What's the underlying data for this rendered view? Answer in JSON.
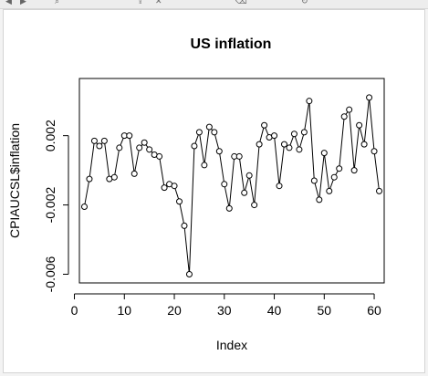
{
  "toolbar": {
    "icons": [
      "arrow-left-icon",
      "arrow-right-icon",
      "zoom-icon",
      "export-icon",
      "clear-icon",
      "broom-icon",
      "refresh-icon"
    ]
  },
  "chart_data": {
    "type": "line",
    "title": "US inflation",
    "xlabel": "Index",
    "ylabel": "CPIAUCSL$inflation",
    "xlim": [
      1,
      62
    ],
    "ylim": [
      -0.0065,
      0.0053
    ],
    "xticks": [
      0,
      10,
      20,
      30,
      40,
      50,
      60
    ],
    "yticks": [
      -0.006,
      -0.002,
      0.002
    ],
    "ytick_labels": [
      "-0.006",
      "-0.002",
      "0.002"
    ],
    "grid": false,
    "point_style": "open-circle",
    "series": [
      {
        "x": [
          2,
          3,
          4,
          5,
          6,
          7,
          8,
          9,
          10,
          11,
          12,
          13,
          14,
          15,
          16,
          17,
          18,
          19,
          20,
          21,
          22,
          23,
          24,
          25,
          26,
          27,
          28,
          29,
          30,
          31,
          32,
          33,
          34,
          35,
          36,
          37,
          38,
          39,
          40,
          41,
          42,
          43,
          44,
          45,
          46,
          47,
          48,
          49,
          50,
          51,
          52,
          53,
          54,
          55,
          56,
          57,
          58,
          59,
          60,
          61
        ],
        "values": [
          -0.0021,
          -0.0005,
          0.0017,
          0.0014,
          0.0017,
          -0.0005,
          -0.0004,
          0.0013,
          0.002,
          0.002,
          -0.0002,
          0.0013,
          0.0016,
          0.0012,
          0.0009,
          0.0008,
          -0.001,
          -0.0008,
          -0.0009,
          -0.0018,
          -0.0032,
          -0.006,
          0.0014,
          0.0022,
          0.0003,
          0.0025,
          0.0022,
          0.0011,
          -0.0008,
          -0.0022,
          0.0008,
          0.0008,
          -0.0013,
          -0.0003,
          -0.002,
          0.0015,
          0.0026,
          0.0019,
          0.002,
          -0.0009,
          0.0015,
          0.0013,
          0.0021,
          0.0012,
          0.0022,
          0.004,
          -0.0006,
          -0.0017,
          0.001,
          -0.0012,
          -0.0004,
          0.0001,
          0.0031,
          0.0035,
          0.0,
          0.0026,
          0.0015,
          0.0042,
          0.0011,
          -0.0012
        ]
      }
    ]
  }
}
